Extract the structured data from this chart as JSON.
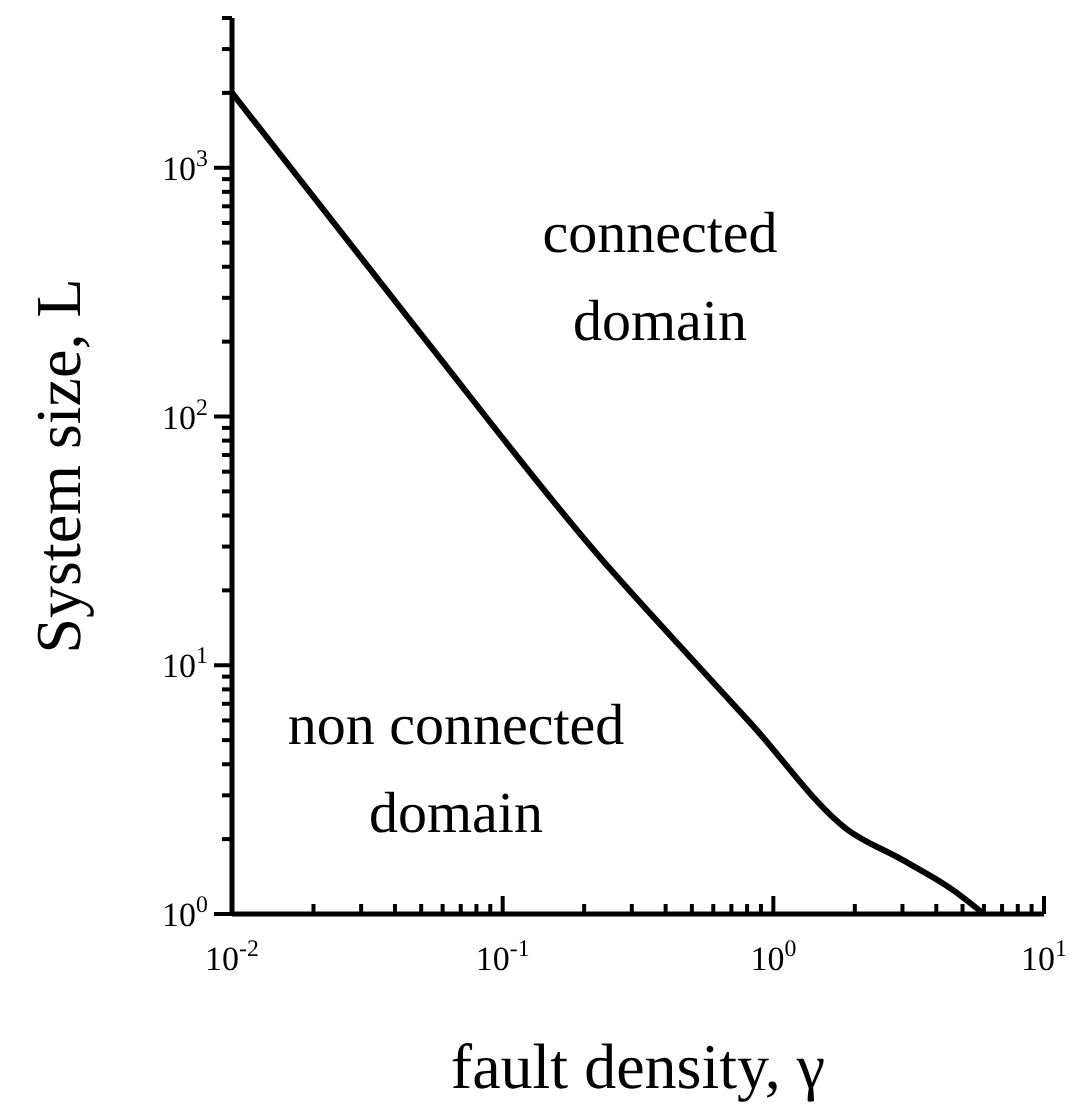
{
  "chart_data": {
    "type": "line",
    "xlabel": "fault density,  γ",
    "ylabel": "System size,  L",
    "log": "xy",
    "marker": "none",
    "line_style": "solid",
    "x": [
      0.01,
      0.049,
      0.23,
      0.45,
      0.83,
      1.86,
      3.0,
      4.6,
      6.0
    ],
    "series": [
      {
        "color": "#000000",
        "values": [
          2000,
          220,
          27,
          12,
          5.8,
          2.2,
          1.65,
          1.25,
          1.0
        ]
      }
    ],
    "xlim": [
      0.01,
      10
    ],
    "ylim": [
      1,
      4000
    ],
    "xticks": [
      {
        "value": 0.01,
        "label": "10$^{-2}$"
      },
      {
        "value": 0.02,
        "label": null
      },
      {
        "value": 0.03,
        "label": null
      },
      {
        "value": 0.04,
        "label": null
      },
      {
        "value": 0.05,
        "label": null
      },
      {
        "value": 0.06,
        "label": null
      },
      {
        "value": 0.07,
        "label": null
      },
      {
        "value": 0.08,
        "label": null
      },
      {
        "value": 0.09,
        "label": null
      },
      {
        "value": 0.1,
        "label": "10$^{-1}$"
      },
      {
        "value": 0.2,
        "label": null
      },
      {
        "value": 0.3,
        "label": null
      },
      {
        "value": 0.4,
        "label": null
      },
      {
        "value": 0.5,
        "label": null
      },
      {
        "value": 0.6,
        "label": null
      },
      {
        "value": 0.7,
        "label": null
      },
      {
        "value": 0.8,
        "label": null
      },
      {
        "value": 0.9,
        "label": null
      },
      {
        "value": 1,
        "label": "10$^{0}$"
      },
      {
        "value": 2,
        "label": null
      },
      {
        "value": 3,
        "label": null
      },
      {
        "value": 4,
        "label": null
      },
      {
        "value": 5,
        "label": null
      },
      {
        "value": 6,
        "label": null
      },
      {
        "value": 7,
        "label": null
      },
      {
        "value": 8,
        "label": null
      },
      {
        "value": 9,
        "label": null
      },
      {
        "value": 10,
        "label": "10$^{1}$"
      }
    ],
    "yticks": [
      {
        "value": 1,
        "label": "10$^{0}$"
      },
      {
        "value": 2,
        "label": null
      },
      {
        "value": 3,
        "label": null
      },
      {
        "value": 4,
        "label": null
      },
      {
        "value": 5,
        "label": null
      },
      {
        "value": 6,
        "label": null
      },
      {
        "value": 7,
        "label": null
      },
      {
        "value": 8,
        "label": null
      },
      {
        "value": 9,
        "label": null
      },
      {
        "value": 10,
        "label": "10$^{1}$"
      },
      {
        "value": 20,
        "label": null
      },
      {
        "value": 30,
        "label": null
      },
      {
        "value": 40,
        "label": null
      },
      {
        "value": 50,
        "label": null
      },
      {
        "value": 60,
        "label": null
      },
      {
        "value": 70,
        "label": null
      },
      {
        "value": 80,
        "label": null
      },
      {
        "value": 90,
        "label": null
      },
      {
        "value": 100,
        "label": "10$^{2}$"
      },
      {
        "value": 200,
        "label": null
      },
      {
        "value": 300,
        "label": null
      },
      {
        "value": 400,
        "label": null
      },
      {
        "value": 500,
        "label": null
      },
      {
        "value": 600,
        "label": null
      },
      {
        "value": 700,
        "label": null
      },
      {
        "value": 800,
        "label": null
      },
      {
        "value": 900,
        "label": null
      },
      {
        "value": 1000,
        "label": "10$^{3}$"
      },
      {
        "value": 2000,
        "label": null
      },
      {
        "value": 3000,
        "label": null
      },
      {
        "value": 4000,
        "label": null
      }
    ],
    "annotations": [
      "connected\ndomain",
      "non connected\ndomain"
    ]
  }
}
